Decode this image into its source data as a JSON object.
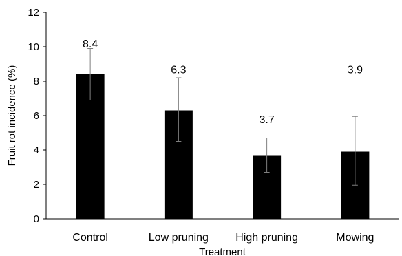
{
  "chart_data": {
    "type": "bar",
    "xlabel": "Treatment",
    "ylabel": "Fruit rot incidence (%)",
    "ylim": [
      0,
      12
    ],
    "yticks": [
      "0",
      "2",
      "4",
      "6",
      "8",
      "10",
      "12"
    ],
    "ytick_values": [
      0,
      2,
      4,
      6,
      8,
      10,
      12
    ],
    "categories": [
      "Control",
      "Low pruning",
      "High pruning",
      "Mowing"
    ],
    "values": [
      8.4,
      6.3,
      3.7,
      3.9
    ],
    "data_labels": [
      "8.4",
      "6.3",
      "3.7",
      "3.9"
    ],
    "error_bars": [
      {
        "low": 6.9,
        "high": 9.9
      },
      {
        "low": 4.5,
        "high": 8.2
      },
      {
        "low": 2.7,
        "high": 4.7
      },
      {
        "low": 1.95,
        "high": 5.95
      }
    ],
    "label_y": [
      10.2,
      8.7,
      5.8,
      8.7
    ],
    "bar_color": "#000000",
    "grid": false,
    "legend": "none"
  }
}
